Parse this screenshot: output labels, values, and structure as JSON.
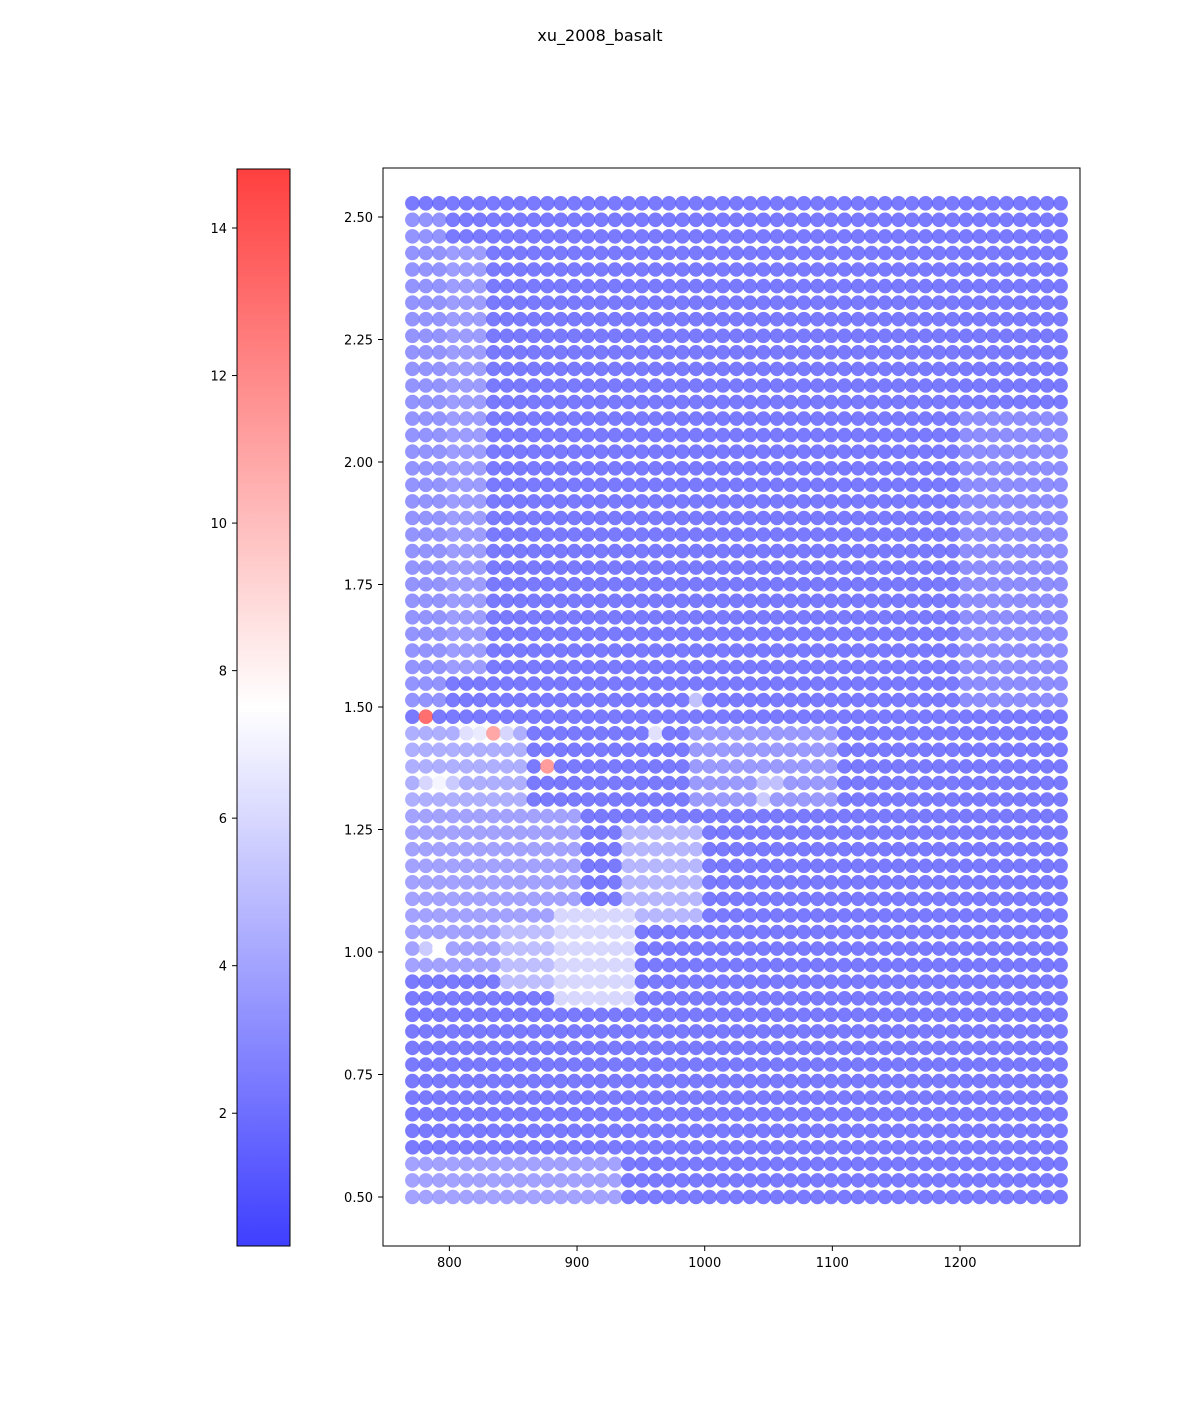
{
  "chart_data": {
    "type": "scatter",
    "title": "xu_2008_basalt",
    "xlabel": "",
    "ylabel": "",
    "xlim": [
      748,
      1294
    ],
    "ylim": [
      0.4,
      2.6
    ],
    "x_ticks": [
      800,
      900,
      1000,
      1100,
      1200
    ],
    "y_ticks": [
      0.5,
      0.75,
      1.0,
      1.25,
      1.5,
      1.75,
      2.0,
      2.25,
      2.5
    ],
    "grid": false,
    "grid_x_start": 771,
    "grid_x_step": 10.58,
    "grid_x_count": 49,
    "grid_y_start": 0.5,
    "grid_y_step": 0.0338,
    "grid_y_count": 61,
    "background_value": 1.0,
    "colorbar": {
      "colormap": "bwr",
      "vmin": 0.2,
      "vmax": 14.8,
      "ticks": [
        2,
        4,
        6,
        8,
        10,
        12,
        14
      ],
      "low_color": "#3f3fff",
      "mid_color": "#ffffff",
      "high_color": "#ff3f3f"
    },
    "series": [
      {
        "highlights": [
          {
            "x": 781,
            "y": 1.48,
            "value": 14.5
          },
          {
            "x": 833,
            "y": 1.45,
            "value": 11.8
          },
          {
            "x": 875,
            "y": 1.38,
            "value": 12.3
          },
          {
            "x": 781,
            "y": 1.35,
            "value": 5.5
          },
          {
            "x": 791,
            "y": 1.35,
            "value": 7.0
          },
          {
            "x": 802,
            "y": 1.35,
            "value": 5.0
          },
          {
            "x": 791,
            "y": 1.01,
            "value": 7.5
          },
          {
            "x": 781,
            "y": 1.01,
            "value": 5.0
          },
          {
            "x": 823,
            "y": 1.45,
            "value": 6.5
          },
          {
            "x": 812,
            "y": 1.45,
            "value": 6.0
          },
          {
            "x": 844,
            "y": 1.45,
            "value": 5.5
          },
          {
            "x": 960,
            "y": 1.45,
            "value": 6.0
          },
          {
            "x": 992,
            "y": 1.51,
            "value": 4.5
          },
          {
            "x": 1045,
            "y": 1.31,
            "value": 5.0
          },
          {
            "x": 1055,
            "y": 1.35,
            "value": 4.5
          },
          {
            "x": 1045,
            "y": 1.35,
            "value": 4.5
          }
        ],
        "light_regions": [
          {
            "x0": 771,
            "x1": 865,
            "y0": 1.3,
            "y1": 1.48,
            "value": 3.6
          },
          {
            "x0": 885,
            "x1": 950,
            "y0": 0.88,
            "y1": 1.08,
            "value": 5.6
          },
          {
            "x0": 845,
            "x1": 890,
            "y0": 0.93,
            "y1": 1.05,
            "value": 4.4
          },
          {
            "x0": 940,
            "x1": 1000,
            "y0": 1.05,
            "y1": 1.25,
            "value": 4.0
          },
          {
            "x0": 771,
            "x1": 900,
            "y0": 0.95,
            "y1": 1.3,
            "value": 3.0
          },
          {
            "x0": 771,
            "x1": 940,
            "y0": 0.5,
            "y1": 0.58,
            "value": 3.0
          },
          {
            "x0": 800,
            "x1": 830,
            "y0": 1.55,
            "y1": 2.45,
            "value": 2.7
          },
          {
            "x0": 771,
            "x1": 800,
            "y0": 1.5,
            "y1": 2.5,
            "value": 2.3
          },
          {
            "x0": 990,
            "x1": 1100,
            "y0": 1.3,
            "y1": 1.46,
            "value": 2.6
          },
          {
            "x0": 1200,
            "x1": 1280,
            "y0": 1.5,
            "y1": 2.1,
            "value": 2.0
          }
        ]
      }
    ]
  }
}
